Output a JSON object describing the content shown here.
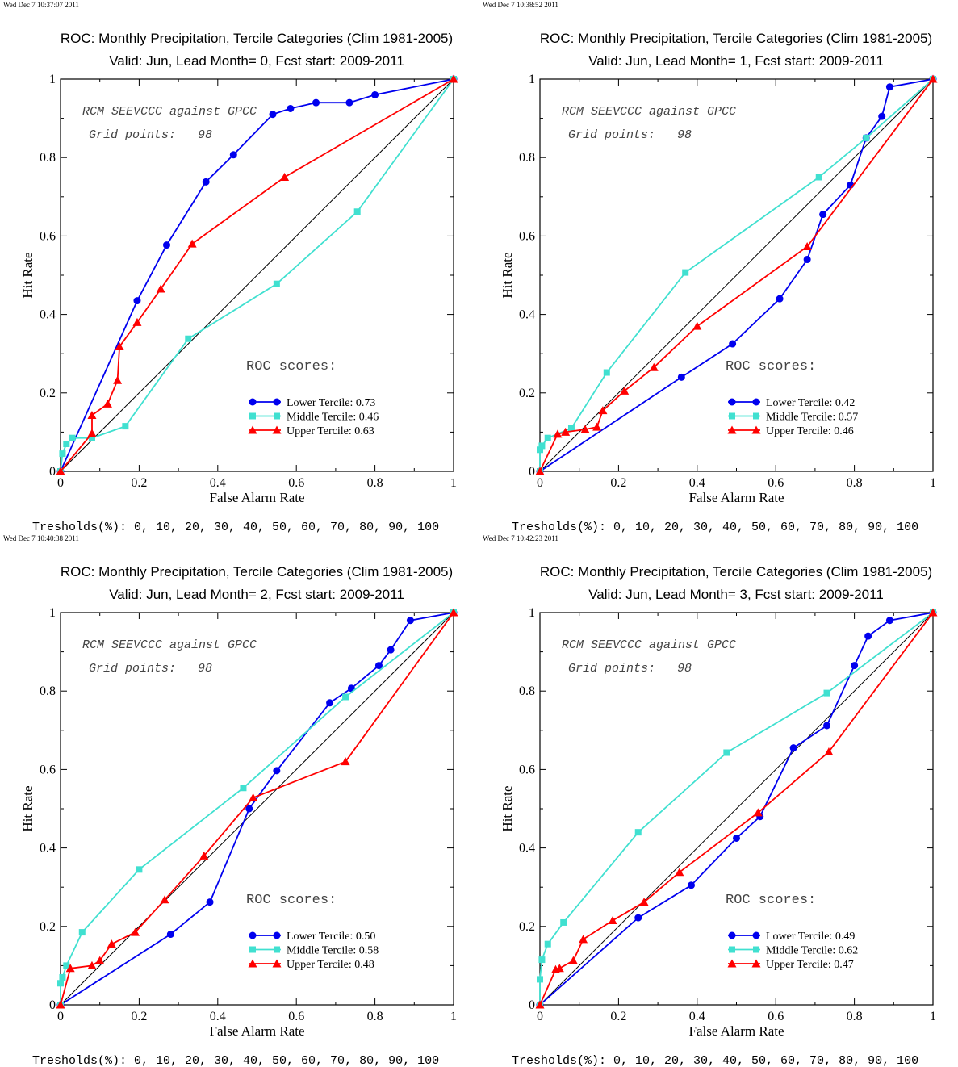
{
  "common": {
    "title_line1": "ROC: Monthly Precipitation, Tercile Categories (Clim 1981-2005)",
    "xlabel": "False Alarm Rate",
    "ylabel": "Hit Rate",
    "annotation_model": "RCM SEEVCCC against GPCC",
    "annotation_grid": "Grid points:   98",
    "roc_scores_label": "ROC scores:",
    "thresholds": "Tresholds(%): 0, 10, 20, 30, 40, 50, 60, 70, 80, 90, 100",
    "xticks": [
      "0",
      "0.2",
      "0.4",
      "0.6",
      "0.8",
      "1"
    ],
    "yticks": [
      "0",
      "0.2",
      "0.4",
      "0.6",
      "0.8",
      "1"
    ],
    "colors": {
      "lower": "#0000ee",
      "middle": "#40e0d0",
      "upper": "#ff0000",
      "diagonal": "#000000"
    }
  },
  "chart_data": [
    {
      "type": "line",
      "timestamp": "Wed Dec  7 10:37:07 2011",
      "title_line2": "Valid: Jun, Lead Month= 0, Fcst start: 2009-2011",
      "xlim": [
        0,
        1
      ],
      "ylim": [
        0,
        1
      ],
      "legend_position": "lower-right",
      "series": [
        {
          "name": "Lower Tercile: 0.73",
          "marker": "circle",
          "x": [
            0,
            0.195,
            0.27,
            0.37,
            0.44,
            0.54,
            0.585,
            0.65,
            0.735,
            0.8,
            1
          ],
          "y": [
            0,
            0.435,
            0.577,
            0.738,
            0.807,
            0.91,
            0.925,
            0.94,
            0.94,
            0.96,
            1
          ]
        },
        {
          "name": "Middle Tercile: 0.46",
          "marker": "square",
          "x": [
            0,
            0.005,
            0.015,
            0.03,
            0.08,
            0.165,
            0.325,
            0.55,
            0.755,
            1
          ],
          "y": [
            0,
            0.045,
            0.07,
            0.085,
            0.085,
            0.115,
            0.338,
            0.478,
            0.662,
            1
          ]
        },
        {
          "name": "Upper Tercile: 0.63",
          "marker": "triangle",
          "x": [
            0,
            0.08,
            0.08,
            0.12,
            0.145,
            0.15,
            0.195,
            0.255,
            0.335,
            0.57,
            1
          ],
          "y": [
            0,
            0.097,
            0.143,
            0.172,
            0.232,
            0.318,
            0.38,
            0.465,
            0.58,
            0.75,
            1
          ]
        }
      ]
    },
    {
      "type": "line",
      "timestamp": "Wed Dec  7 10:38:52 2011",
      "title_line2": "Valid: Jun, Lead Month= 1, Fcst start: 2009-2011",
      "xlim": [
        0,
        1
      ],
      "ylim": [
        0,
        1
      ],
      "legend_position": "lower-right",
      "series": [
        {
          "name": "Lower Tercile: 0.42",
          "marker": "circle",
          "x": [
            0,
            0.36,
            0.49,
            0.61,
            0.68,
            0.72,
            0.79,
            0.83,
            0.87,
            0.89,
            1
          ],
          "y": [
            0,
            0.24,
            0.325,
            0.44,
            0.54,
            0.655,
            0.73,
            0.85,
            0.905,
            0.98,
            1
          ]
        },
        {
          "name": "Middle Tercile: 0.57",
          "marker": "square",
          "x": [
            0,
            0,
            0.005,
            0.02,
            0.08,
            0.17,
            0.37,
            0.71,
            0.83,
            1
          ],
          "y": [
            0,
            0.055,
            0.065,
            0.085,
            0.11,
            0.252,
            0.507,
            0.75,
            0.85,
            1
          ]
        },
        {
          "name": "Upper Tercile: 0.46",
          "marker": "triangle",
          "x": [
            0,
            0.045,
            0.065,
            0.115,
            0.145,
            0.16,
            0.215,
            0.29,
            0.4,
            0.68,
            1
          ],
          "y": [
            0,
            0.095,
            0.1,
            0.107,
            0.113,
            0.155,
            0.205,
            0.265,
            0.37,
            0.573,
            1
          ]
        }
      ]
    },
    {
      "type": "line",
      "timestamp": "Wed Dec  7 10:40:38 2011",
      "title_line2": "Valid: Jun, Lead Month= 2, Fcst start: 2009-2011",
      "xlim": [
        0,
        1
      ],
      "ylim": [
        0,
        1
      ],
      "legend_position": "lower-right",
      "series": [
        {
          "name": "Lower Tercile: 0.50",
          "marker": "circle",
          "x": [
            0,
            0.28,
            0.38,
            0.48,
            0.55,
            0.685,
            0.74,
            0.81,
            0.84,
            0.89,
            1
          ],
          "y": [
            0,
            0.18,
            0.262,
            0.5,
            0.597,
            0.77,
            0.807,
            0.865,
            0.905,
            0.98,
            1
          ]
        },
        {
          "name": "Middle Tercile: 0.58",
          "marker": "square",
          "x": [
            0,
            0,
            0.005,
            0.015,
            0.055,
            0.2,
            0.465,
            0.725,
            1
          ],
          "y": [
            0,
            0.055,
            0.07,
            0.1,
            0.185,
            0.345,
            0.553,
            0.785,
            1
          ]
        },
        {
          "name": "Upper Tercile: 0.48",
          "marker": "triangle",
          "x": [
            0,
            0.025,
            0.08,
            0.1,
            0.13,
            0.19,
            0.265,
            0.365,
            0.49,
            0.725,
            1
          ],
          "y": [
            0,
            0.093,
            0.1,
            0.113,
            0.155,
            0.185,
            0.268,
            0.38,
            0.528,
            0.62,
            1
          ]
        }
      ]
    },
    {
      "type": "line",
      "timestamp": "Wed Dec  7 10:42:23 2011",
      "title_line2": "Valid: Jun, Lead Month= 3, Fcst start: 2009-2011",
      "xlim": [
        0,
        1
      ],
      "ylim": [
        0,
        1
      ],
      "legend_position": "lower-right",
      "series": [
        {
          "name": "Lower Tercile: 0.49",
          "marker": "circle",
          "x": [
            0,
            0.25,
            0.385,
            0.5,
            0.56,
            0.645,
            0.73,
            0.8,
            0.835,
            0.89,
            1
          ],
          "y": [
            0,
            0.222,
            0.305,
            0.425,
            0.48,
            0.655,
            0.712,
            0.865,
            0.94,
            0.98,
            1
          ]
        },
        {
          "name": "Middle Tercile: 0.62",
          "marker": "square",
          "x": [
            0,
            0,
            0.005,
            0.02,
            0.06,
            0.25,
            0.475,
            0.73,
            1
          ],
          "y": [
            0,
            0.065,
            0.115,
            0.155,
            0.21,
            0.44,
            0.643,
            0.795,
            1
          ]
        },
        {
          "name": "Upper Tercile: 0.47",
          "marker": "triangle",
          "x": [
            0,
            0.04,
            0.05,
            0.085,
            0.11,
            0.185,
            0.265,
            0.355,
            0.555,
            0.735,
            1
          ],
          "y": [
            0,
            0.09,
            0.093,
            0.113,
            0.167,
            0.215,
            0.262,
            0.338,
            0.49,
            0.645,
            1
          ]
        }
      ]
    }
  ]
}
